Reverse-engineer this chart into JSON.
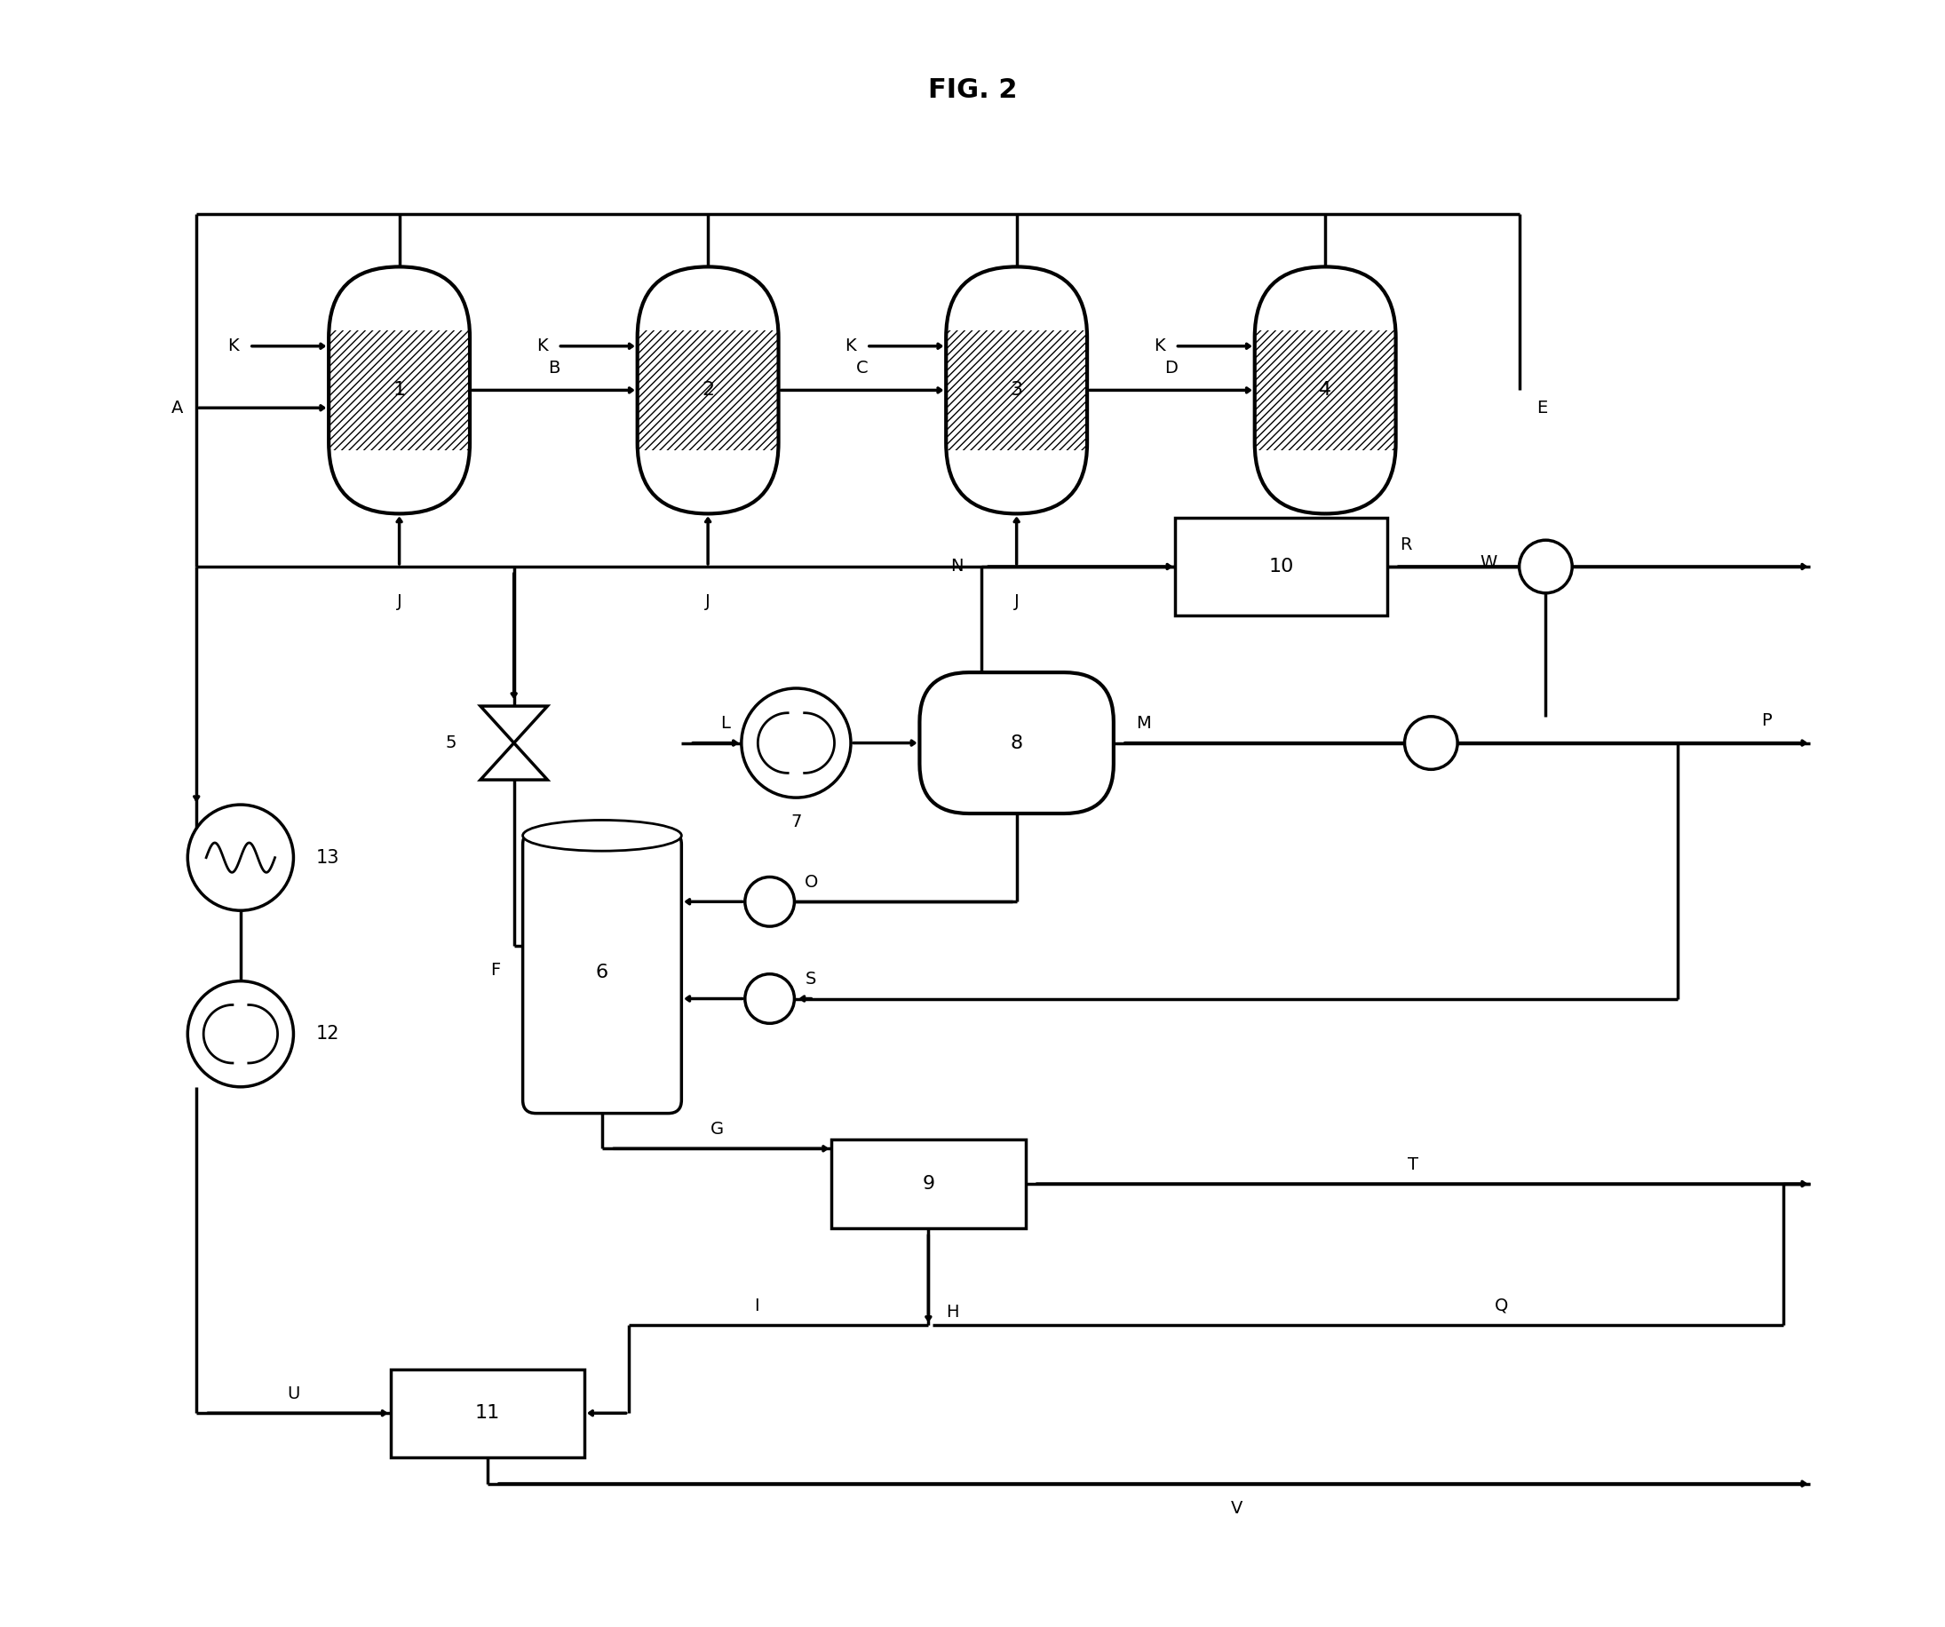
{
  "title": "FIG. 2",
  "bg": "#ffffff",
  "lc": "#000000",
  "lw": 2.5,
  "fs": 14,
  "xlim": [
    0,
    22
  ],
  "ylim": [
    0,
    18
  ],
  "figsize": [
    21.9,
    18.32
  ]
}
